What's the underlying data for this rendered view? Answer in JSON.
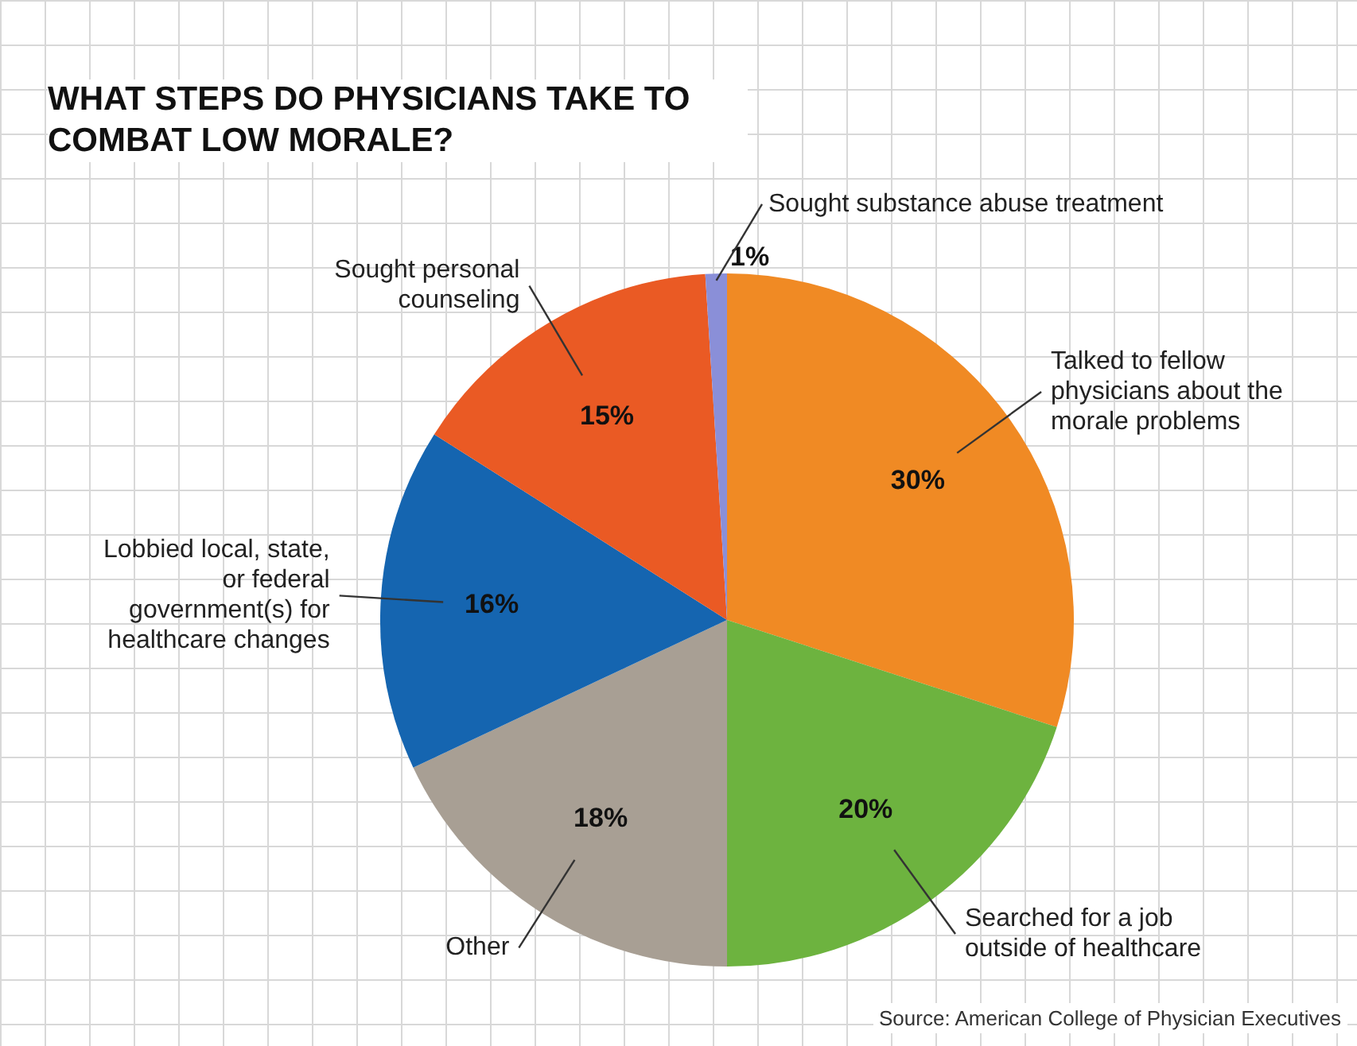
{
  "chart_data": {
    "type": "pie",
    "title": "WHAT STEPS DO PHYSICIANS TAKE TO COMBAT LOW MORALE?",
    "categories": [
      "Talked to fellow physicians about the morale problems",
      "Searched for a job outside of healthcare",
      "Other",
      "Lobbied local, state, or federal government(s) for healthcare changes",
      "Sought personal counseling",
      "Sought substance abuse treatment"
    ],
    "values": [
      30,
      20,
      18,
      16,
      15,
      1
    ],
    "value_labels": [
      "30%",
      "20%",
      "18%",
      "16%",
      "15%",
      "1%"
    ],
    "colors": [
      "#f08a24",
      "#6db33f",
      "#a89f94",
      "#1565b0",
      "#ea5a24",
      "#8a8fd8"
    ],
    "annotations": [
      "Source: American College of Physician Executives"
    ],
    "legend": false
  }
}
